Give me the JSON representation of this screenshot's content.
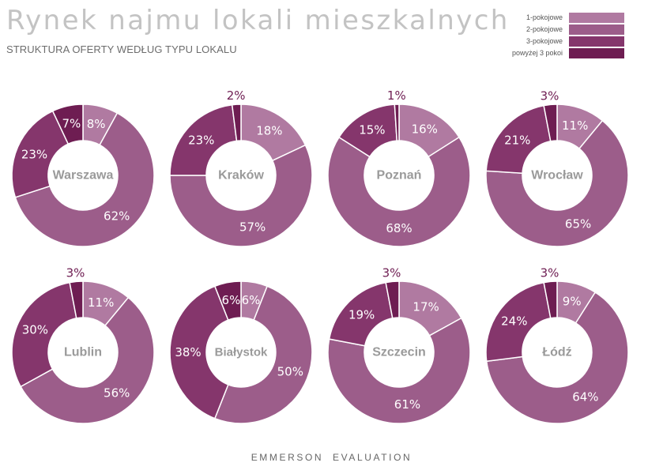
{
  "title": "Rynek najmu lokali mieszkalnych",
  "subtitle": "STRUKTURA OFERTY WEDŁUG TYPU LOKALU",
  "footer": "EMMERSON  EVALUATION",
  "colors": {
    "1-pokojowe": "#b07aa1",
    "2-pokojowe": "#9c5d8a",
    "3-pokojowe": "#85366c",
    "powyzej-3-pokoi": "#6e1d52",
    "center-label": "#9a9a9a"
  },
  "legend": [
    {
      "label": "1-pokojowe",
      "color": "#b07aa1"
    },
    {
      "label": "2-pokojowe",
      "color": "#9c5d8a"
    },
    {
      "label": "3-pokojowe",
      "color": "#85366c"
    },
    {
      "label": "powyżej 3 pokoi",
      "color": "#6e1d52"
    }
  ],
  "chart_data": [
    {
      "type": "pie",
      "title": "Warszawa",
      "categories": [
        "1-pokojowe",
        "2-pokojowe",
        "3-pokojowe",
        "powyżej 3 pokoi"
      ],
      "values": [
        8,
        62,
        23,
        7
      ],
      "labels": [
        "8%",
        "62%",
        "23%",
        "7%"
      ]
    },
    {
      "type": "pie",
      "title": "Kraków",
      "categories": [
        "1-pokojowe",
        "2-pokojowe",
        "3-pokojowe",
        "powyżej 3 pokoi"
      ],
      "values": [
        18,
        57,
        23,
        2
      ],
      "labels": [
        "18%",
        "57%",
        "23%",
        "2%"
      ]
    },
    {
      "type": "pie",
      "title": "Poznań",
      "categories": [
        "1-pokojowe",
        "2-pokojowe",
        "3-pokojowe",
        "powyżej 3 pokoi"
      ],
      "values": [
        16,
        68,
        15,
        1
      ],
      "labels": [
        "16%",
        "68%",
        "15%",
        "1%"
      ]
    },
    {
      "type": "pie",
      "title": "Wrocław",
      "categories": [
        "1-pokojowe",
        "2-pokojowe",
        "3-pokojowe",
        "powyżej 3 pokoi"
      ],
      "values": [
        11,
        65,
        21,
        3
      ],
      "labels": [
        "11%",
        "65%",
        "21%",
        "3%"
      ]
    },
    {
      "type": "pie",
      "title": "Lublin",
      "categories": [
        "1-pokojowe",
        "2-pokojowe",
        "3-pokojowe",
        "powyżej 3 pokoi"
      ],
      "values": [
        11,
        56,
        30,
        3
      ],
      "labels": [
        "11%",
        "56%",
        "30%",
        "3%"
      ]
    },
    {
      "type": "pie",
      "title": "Białystok",
      "categories": [
        "1-pokojowe",
        "2-pokojowe",
        "3-pokojowe",
        "powyżej 3 pokoi"
      ],
      "values": [
        6,
        50,
        38,
        6
      ],
      "labels": [
        "6%",
        "50%",
        "38%",
        "6%"
      ]
    },
    {
      "type": "pie",
      "title": "Szczecin",
      "categories": [
        "1-pokojowe",
        "2-pokojowe",
        "3-pokojowe",
        "powyżej 3 pokoi"
      ],
      "values": [
        17,
        61,
        19,
        3
      ],
      "labels": [
        "17%",
        "61%",
        "19%",
        "3%"
      ]
    },
    {
      "type": "pie",
      "title": "Łódź",
      "categories": [
        "1-pokojowe",
        "2-pokojowe",
        "3-pokojowe",
        "powyżej 3 pokoi"
      ],
      "values": [
        9,
        64,
        24,
        3
      ],
      "labels": [
        "9%",
        "64%",
        "24%",
        "3%"
      ]
    }
  ]
}
